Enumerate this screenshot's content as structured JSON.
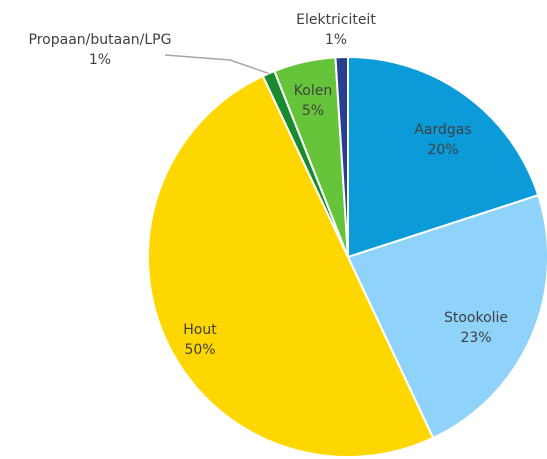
{
  "chart_data": {
    "type": "pie",
    "categories": [
      "Aardgas",
      "Stookolie",
      "Hout",
      "Propaan/butaan/LPG",
      "Kolen",
      "Elektriciteit"
    ],
    "values": [
      20,
      23,
      50,
      1,
      5,
      1
    ],
    "value_labels": [
      "20%",
      "23%",
      "50%",
      "1%",
      "5%",
      "1%"
    ],
    "colors": [
      "#0a9bd8",
      "#8fd3fb",
      "#ffd700",
      "#1a8a2e",
      "#66c43a",
      "#2a3f8f"
    ]
  }
}
